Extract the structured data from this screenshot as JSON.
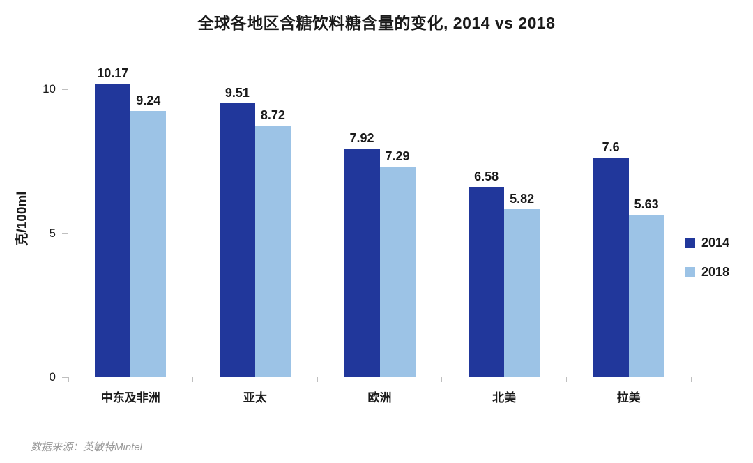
{
  "page": {
    "title": "全球各地区含糖饮料糖含量的变化, 2014 vs 2018",
    "source_note": "数据来源：英敏特Mintel"
  },
  "chart_data": {
    "type": "bar",
    "title": "全球各地区含糖饮料糖含量的变化, 2014 vs 2018",
    "categories": [
      "中东及非洲",
      "亚太",
      "欧洲",
      "北美",
      "拉美"
    ],
    "series": [
      {
        "name": "2014",
        "color": "#21379B",
        "values": [
          10.17,
          9.51,
          7.92,
          6.58,
          7.6
        ]
      },
      {
        "name": "2018",
        "color": "#9CC3E6",
        "values": [
          9.24,
          8.72,
          7.29,
          5.82,
          5.63
        ]
      }
    ],
    "xlabel": "",
    "ylabel": "克/100ml",
    "yticks": [
      0,
      5,
      10
    ],
    "ylim": [
      0,
      11.05
    ],
    "grid": false,
    "legend_position": "right",
    "bar_value_labels": true
  },
  "colors": {
    "series_2014": "#21379B",
    "series_2018": "#9CC3E6",
    "axis_line": "#BFBFBF",
    "text": "#1A1A1A",
    "source_text": "#9A9A9A",
    "background": "#FFFFFF"
  }
}
